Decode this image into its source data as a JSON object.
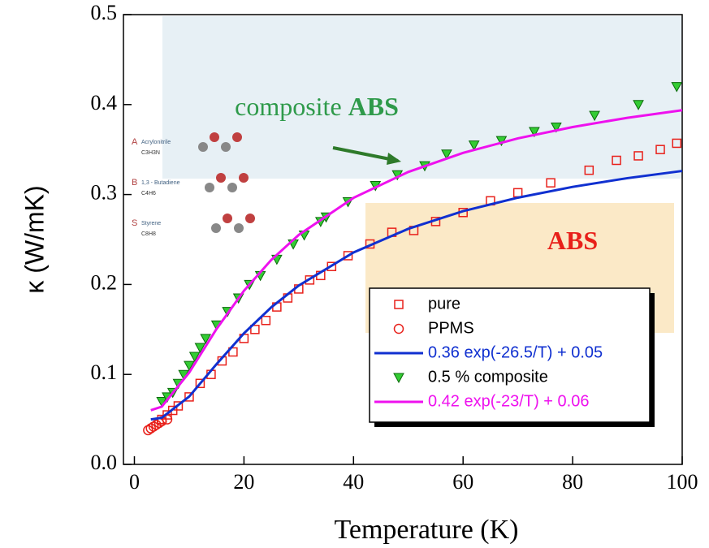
{
  "chart_data": {
    "type": "scatter",
    "x_label": "Temperature (K)",
    "y_label": "κ (W/mK)",
    "xlim": [
      -2,
      100
    ],
    "ylim": [
      0,
      0.5
    ],
    "xticks": [
      0,
      20,
      40,
      60,
      80,
      100
    ],
    "yticks": [
      {
        "value": 0,
        "label": "0.0"
      },
      0.1,
      0.2,
      0.3,
      0.4,
      0.5
    ],
    "legend": "lower right",
    "annotations": [
      {
        "parts": [
          "composite",
          "ABS"
        ],
        "color": "#2e9a4a"
      },
      {
        "parts": [
          "ABS"
        ],
        "color": "#e8201a"
      }
    ],
    "molecules": [
      {
        "letter": "A",
        "name": "Acrylonitrile",
        "formula": "C3H3N"
      },
      {
        "letter": "B",
        "name": "1,3 - Butadiene",
        "formula": "C4H6"
      },
      {
        "letter": "S",
        "name": "Styrene",
        "formula": "C8H8"
      }
    ],
    "series": [
      {
        "name": "pure",
        "style": "square",
        "color": "#e8201a",
        "x": [
          5,
          6,
          7,
          8,
          10,
          12,
          14,
          16,
          18,
          20,
          22,
          24,
          26,
          28,
          30,
          32,
          34,
          36,
          39,
          43,
          47,
          51,
          55,
          60,
          65,
          70,
          76,
          83,
          88,
          92,
          96,
          99
        ],
        "values": [
          0.05,
          0.055,
          0.06,
          0.065,
          0.075,
          0.09,
          0.1,
          0.115,
          0.125,
          0.14,
          0.15,
          0.16,
          0.175,
          0.185,
          0.195,
          0.205,
          0.21,
          0.22,
          0.232,
          0.245,
          0.258,
          0.26,
          0.27,
          0.28,
          0.293,
          0.302,
          0.313,
          0.327,
          0.338,
          0.343,
          0.35,
          0.357
        ]
      },
      {
        "name": "PPMS",
        "style": "circle",
        "color": "#e8201a",
        "x": [
          2.5,
          3,
          3.5,
          4,
          4.5,
          5,
          6
        ],
        "values": [
          0.038,
          0.04,
          0.042,
          0.044,
          0.046,
          0.048,
          0.05
        ]
      },
      {
        "name": "0.36 exp(-26.5/T) + 0.05",
        "style": "line",
        "color": "#1030d0",
        "x": [
          3,
          5,
          10,
          15,
          20,
          25,
          30,
          40,
          50,
          60,
          70,
          80,
          90,
          100
        ],
        "values": [
          0.05,
          0.0518,
          0.0754,
          0.1115,
          0.1457,
          0.1747,
          0.1988,
          0.2356,
          0.2619,
          0.2815,
          0.2965,
          0.3085,
          0.3182,
          0.3262
        ]
      },
      {
        "name": "0.5 % composite",
        "style": "triangle",
        "color": "#33cc33",
        "x": [
          5,
          6,
          7,
          8,
          9,
          10,
          11,
          12,
          13,
          15,
          17,
          19,
          21,
          23,
          26,
          29,
          31,
          34,
          35,
          39,
          44,
          48,
          53,
          57,
          62,
          67,
          73,
          77,
          84,
          92,
          99
        ],
        "values": [
          0.07,
          0.075,
          0.08,
          0.09,
          0.1,
          0.11,
          0.12,
          0.13,
          0.14,
          0.155,
          0.17,
          0.185,
          0.2,
          0.21,
          0.228,
          0.245,
          0.255,
          0.27,
          0.275,
          0.292,
          0.31,
          0.322,
          0.332,
          0.345,
          0.355,
          0.36,
          0.37,
          0.375,
          0.388,
          0.4,
          0.42
        ]
      },
      {
        "name": "0.42 exp(-23/T) + 0.06",
        "style": "line",
        "color": "#ee11ee",
        "x": [
          3,
          5,
          10,
          15,
          20,
          25,
          30,
          40,
          50,
          60,
          70,
          80,
          90,
          100
        ],
        "values": [
          0.0602,
          0.0642,
          0.1021,
          0.1506,
          0.193,
          0.2274,
          0.2551,
          0.2963,
          0.3251,
          0.3463,
          0.3624,
          0.375,
          0.3853,
          0.3937
        ]
      }
    ]
  }
}
